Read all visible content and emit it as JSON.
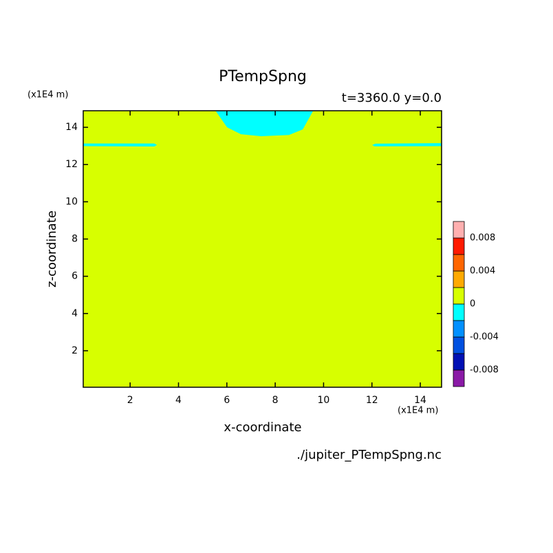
{
  "chart_data": {
    "type": "contour",
    "title": "PTempSpng",
    "subtitle": "t=3360.0 y=0.0",
    "x_label": "x-coordinate",
    "y_label": "z-coordinate",
    "x_unit": "(x1E4 m)",
    "y_unit": "(x1E4 m)",
    "source": "./jupiter_PTempSpng.nc",
    "xlim": [
      0.06,
      14.88
    ],
    "ylim": [
      0.04,
      14.89
    ],
    "xticks": [
      2,
      4,
      6,
      8,
      10,
      12,
      14
    ],
    "yticks": [
      2,
      4,
      6,
      8,
      10,
      12,
      14
    ],
    "levels": [
      -0.008,
      -0.006,
      -0.004,
      -0.002,
      0,
      0.002,
      0.004,
      0.006,
      0.008
    ],
    "colors": [
      "#8a1aa6",
      "#0010b4",
      "#0050e0",
      "#0090ff",
      "#00ffff",
      "#d7ff00",
      "#ffaa00",
      "#ff6600",
      "#ff1a00",
      "#ffb0b0"
    ],
    "colorbar_ticks": [
      -0.008,
      -0.004,
      0,
      0.004,
      0.008
    ],
    "background_band": [
      0,
      0.002
    ],
    "regions": [
      {
        "band": [
          -0.002,
          0
        ],
        "x": [
          5.53,
          6.01,
          6.58,
          7.43,
          8.57,
          9.14,
          9.57
        ],
        "z": [
          14.89,
          14.0,
          13.63,
          13.52,
          13.59,
          13.89,
          14.89
        ]
      },
      {
        "band": [
          -0.002,
          0
        ],
        "x": [
          0.06,
          3.0,
          3.11,
          3.0,
          0.06
        ],
        "z": [
          13.13,
          13.13,
          13.05,
          12.97,
          12.99
        ]
      },
      {
        "band": [
          -0.002,
          0
        ],
        "x": [
          12.1,
          12.01,
          12.15,
          14.88,
          14.88
        ],
        "z": [
          12.98,
          13.05,
          13.12,
          13.15,
          12.99
        ]
      }
    ]
  }
}
